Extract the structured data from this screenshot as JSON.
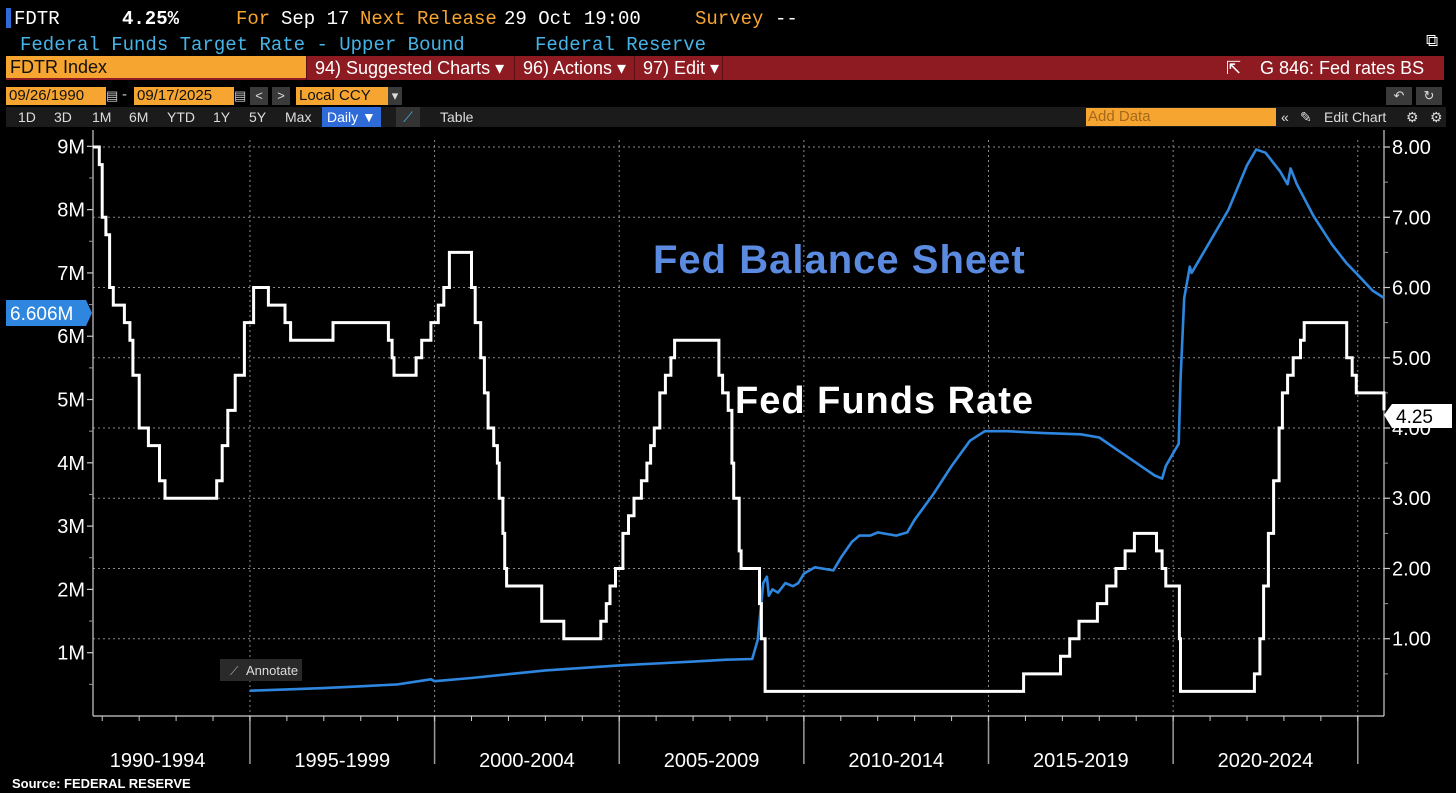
{
  "header": {
    "ticker": "FDTR",
    "value": "4.25%",
    "for_label": "For",
    "for_date": "Sep 17",
    "next_label": "Next Release",
    "next_date": "29 Oct 19:00",
    "survey_label": "Survey",
    "survey_value": "--",
    "description": "Federal Funds Target Rate - Upper Bound",
    "source_name": "Federal Reserve"
  },
  "toolbar": {
    "security": "FDTR Index",
    "suggested": "94) Suggested Charts ▾",
    "actions": "96) Actions ▾",
    "edit": "97) Edit ▾",
    "chart_name": "G 846: Fed rates BS"
  },
  "dates": {
    "start": "09/26/1990",
    "end": "09/17/2025",
    "currency": "Local CCY"
  },
  "ranges": {
    "d1": "1D",
    "d3": "3D",
    "m1": "1M",
    "m6": "6M",
    "ytd": "YTD",
    "y1": "1Y",
    "y5": "5Y",
    "max": "Max",
    "daily": "Daily ▼",
    "table": "Table",
    "add_data": "Add Data",
    "edit_chart": "Edit Chart",
    "annotate": "Annotate"
  },
  "colors": {
    "balance": "#2e86de",
    "rate": "#ffffff",
    "annotation_balance": "#5b8be0",
    "orange": "#f7a531",
    "red_bar": "#8e1a22"
  },
  "footer": {
    "source": "Source:  FEDERAL RESERVE"
  },
  "chart_data": {
    "type": "line",
    "title": "",
    "x_labels": [
      "1990-1994",
      "1995-1999",
      "2000-2004",
      "2005-2009",
      "2010-2014",
      "2015-2019",
      "2020-2024"
    ],
    "x_range": [
      1990.75,
      2025.71
    ],
    "left_axis": {
      "ticks": [
        "1M",
        "2M",
        "3M",
        "4M",
        "5M",
        "6M",
        "7M",
        "8M",
        "9M"
      ],
      "range": [
        0,
        9.1
      ],
      "unit": "millions USD"
    },
    "right_axis": {
      "ticks": [
        "1.00",
        "2.00",
        "3.00",
        "4.00",
        "5.00",
        "6.00",
        "7.00",
        "8.00"
      ],
      "range": [
        -0.1,
        8.1
      ],
      "unit": "percent"
    },
    "annotations": {
      "balance_label": "Fed Balance Sheet",
      "rate_label": "Fed Funds Rate"
    },
    "last_values": {
      "balance": "6.606M",
      "rate": "4.25"
    },
    "series": [
      {
        "name": "Fed Funds Rate",
        "axis": "right",
        "step": true,
        "points": [
          [
            1990.75,
            8.0
          ],
          [
            1990.92,
            7.75
          ],
          [
            1991.0,
            7.0
          ],
          [
            1991.1,
            6.75
          ],
          [
            1991.2,
            6.0
          ],
          [
            1991.3,
            5.75
          ],
          [
            1991.6,
            5.5
          ],
          [
            1991.75,
            5.25
          ],
          [
            1991.83,
            4.75
          ],
          [
            1992.0,
            4.0
          ],
          [
            1992.25,
            3.75
          ],
          [
            1992.55,
            3.25
          ],
          [
            1992.7,
            3.0
          ],
          [
            1994.1,
            3.25
          ],
          [
            1994.25,
            3.75
          ],
          [
            1994.4,
            4.25
          ],
          [
            1994.6,
            4.75
          ],
          [
            1994.85,
            5.5
          ],
          [
            1995.1,
            6.0
          ],
          [
            1995.5,
            5.75
          ],
          [
            1995.95,
            5.5
          ],
          [
            1996.1,
            5.25
          ],
          [
            1997.25,
            5.5
          ],
          [
            1998.75,
            5.25
          ],
          [
            1998.85,
            5.0
          ],
          [
            1998.9,
            4.75
          ],
          [
            1999.5,
            5.0
          ],
          [
            1999.65,
            5.25
          ],
          [
            1999.9,
            5.5
          ],
          [
            2000.1,
            5.75
          ],
          [
            2000.25,
            6.0
          ],
          [
            2000.4,
            6.5
          ],
          [
            2001.0,
            6.0
          ],
          [
            2001.1,
            5.5
          ],
          [
            2001.25,
            5.0
          ],
          [
            2001.35,
            4.5
          ],
          [
            2001.45,
            4.0
          ],
          [
            2001.6,
            3.75
          ],
          [
            2001.7,
            3.5
          ],
          [
            2001.75,
            3.0
          ],
          [
            2001.85,
            2.5
          ],
          [
            2001.9,
            2.0
          ],
          [
            2001.95,
            1.75
          ],
          [
            2002.9,
            1.25
          ],
          [
            2003.5,
            1.0
          ],
          [
            2004.5,
            1.25
          ],
          [
            2004.65,
            1.5
          ],
          [
            2004.75,
            1.75
          ],
          [
            2004.9,
            2.0
          ],
          [
            2005.1,
            2.5
          ],
          [
            2005.25,
            2.75
          ],
          [
            2005.4,
            3.0
          ],
          [
            2005.6,
            3.25
          ],
          [
            2005.75,
            3.5
          ],
          [
            2005.85,
            3.75
          ],
          [
            2005.95,
            4.0
          ],
          [
            2006.1,
            4.5
          ],
          [
            2006.25,
            4.75
          ],
          [
            2006.4,
            5.0
          ],
          [
            2006.5,
            5.25
          ],
          [
            2007.7,
            4.75
          ],
          [
            2007.8,
            4.5
          ],
          [
            2007.95,
            4.25
          ],
          [
            2008.05,
            3.5
          ],
          [
            2008.1,
            3.0
          ],
          [
            2008.25,
            2.25
          ],
          [
            2008.3,
            2.0
          ],
          [
            2008.8,
            1.5
          ],
          [
            2008.85,
            1.0
          ],
          [
            2008.95,
            0.25
          ],
          [
            2015.95,
            0.5
          ],
          [
            2016.95,
            0.75
          ],
          [
            2017.2,
            1.0
          ],
          [
            2017.45,
            1.25
          ],
          [
            2017.95,
            1.5
          ],
          [
            2018.2,
            1.75
          ],
          [
            2018.45,
            2.0
          ],
          [
            2018.7,
            2.25
          ],
          [
            2018.95,
            2.5
          ],
          [
            2019.55,
            2.25
          ],
          [
            2019.7,
            2.0
          ],
          [
            2019.8,
            1.75
          ],
          [
            2020.17,
            1.0
          ],
          [
            2020.2,
            0.25
          ],
          [
            2022.2,
            0.5
          ],
          [
            2022.35,
            1.0
          ],
          [
            2022.45,
            1.75
          ],
          [
            2022.58,
            2.5
          ],
          [
            2022.72,
            3.25
          ],
          [
            2022.87,
            4.0
          ],
          [
            2022.96,
            4.5
          ],
          [
            2023.1,
            4.75
          ],
          [
            2023.25,
            5.0
          ],
          [
            2023.45,
            5.25
          ],
          [
            2023.55,
            5.5
          ],
          [
            2024.7,
            5.0
          ],
          [
            2024.85,
            4.75
          ],
          [
            2024.96,
            4.5
          ],
          [
            2025.71,
            4.25
          ]
        ]
      },
      {
        "name": "Fed Balance Sheet",
        "axis": "left",
        "points": [
          [
            1995.0,
            0.4
          ],
          [
            1996.0,
            0.42
          ],
          [
            1997.0,
            0.44
          ],
          [
            1998.0,
            0.47
          ],
          [
            1999.0,
            0.5
          ],
          [
            1999.9,
            0.58
          ],
          [
            2000.0,
            0.55
          ],
          [
            2001.0,
            0.6
          ],
          [
            2002.0,
            0.66
          ],
          [
            2003.0,
            0.72
          ],
          [
            2004.0,
            0.76
          ],
          [
            2005.0,
            0.8
          ],
          [
            2006.0,
            0.83
          ],
          [
            2007.0,
            0.86
          ],
          [
            2007.9,
            0.89
          ],
          [
            2008.6,
            0.9
          ],
          [
            2008.75,
            1.2
          ],
          [
            2008.9,
            2.1
          ],
          [
            2009.0,
            2.2
          ],
          [
            2009.05,
            1.9
          ],
          [
            2009.15,
            2.0
          ],
          [
            2009.3,
            1.95
          ],
          [
            2009.5,
            2.1
          ],
          [
            2009.7,
            2.05
          ],
          [
            2009.85,
            2.1
          ],
          [
            2010.0,
            2.25
          ],
          [
            2010.3,
            2.35
          ],
          [
            2010.8,
            2.3
          ],
          [
            2011.0,
            2.5
          ],
          [
            2011.3,
            2.75
          ],
          [
            2011.5,
            2.85
          ],
          [
            2011.8,
            2.85
          ],
          [
            2012.0,
            2.9
          ],
          [
            2012.5,
            2.85
          ],
          [
            2012.8,
            2.9
          ],
          [
            2013.0,
            3.1
          ],
          [
            2013.5,
            3.5
          ],
          [
            2014.0,
            3.95
          ],
          [
            2014.5,
            4.35
          ],
          [
            2014.9,
            4.5
          ],
          [
            2015.5,
            4.5
          ],
          [
            2016.5,
            4.47
          ],
          [
            2017.5,
            4.45
          ],
          [
            2018.0,
            4.4
          ],
          [
            2018.5,
            4.2
          ],
          [
            2019.0,
            4.0
          ],
          [
            2019.5,
            3.8
          ],
          [
            2019.7,
            3.75
          ],
          [
            2019.8,
            3.95
          ],
          [
            2020.0,
            4.15
          ],
          [
            2020.15,
            4.3
          ],
          [
            2020.2,
            5.3
          ],
          [
            2020.3,
            6.6
          ],
          [
            2020.45,
            7.1
          ],
          [
            2020.5,
            7.0
          ],
          [
            2020.7,
            7.2
          ],
          [
            2021.0,
            7.5
          ],
          [
            2021.5,
            8.0
          ],
          [
            2022.0,
            8.7
          ],
          [
            2022.25,
            8.95
          ],
          [
            2022.5,
            8.9
          ],
          [
            2022.9,
            8.6
          ],
          [
            2023.1,
            8.4
          ],
          [
            2023.18,
            8.65
          ],
          [
            2023.35,
            8.4
          ],
          [
            2023.8,
            7.9
          ],
          [
            2024.3,
            7.45
          ],
          [
            2024.7,
            7.15
          ],
          [
            2025.0,
            6.97
          ],
          [
            2025.4,
            6.72
          ],
          [
            2025.71,
            6.606
          ]
        ]
      }
    ]
  }
}
